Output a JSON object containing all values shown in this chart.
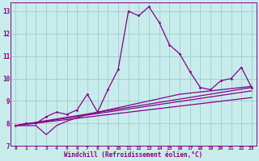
{
  "xlabel": "Windchill (Refroidissement éolien,°C)",
  "bg_color": "#c8ecec",
  "grid_color": "#a0cccc",
  "line_color": "#880088",
  "xlim": [
    -0.5,
    23.5
  ],
  "ylim": [
    7,
    13.4
  ],
  "yticks": [
    7,
    8,
    9,
    10,
    11,
    12,
    13
  ],
  "xticks": [
    0,
    1,
    2,
    3,
    4,
    5,
    6,
    7,
    8,
    9,
    10,
    11,
    12,
    13,
    14,
    15,
    16,
    17,
    18,
    19,
    20,
    21,
    22,
    23
  ],
  "main_x": [
    0,
    1,
    2,
    3,
    4,
    5,
    6,
    7,
    8,
    9,
    10,
    11,
    12,
    13,
    14,
    15,
    16,
    17,
    18,
    19,
    20,
    21,
    22,
    23
  ],
  "main_y": [
    7.9,
    8.0,
    8.0,
    8.3,
    8.5,
    8.4,
    8.6,
    9.3,
    8.5,
    9.5,
    10.4,
    13.0,
    12.8,
    13.2,
    12.5,
    11.5,
    11.1,
    10.3,
    9.6,
    9.5,
    9.9,
    10.0,
    10.5,
    9.6
  ],
  "line1_x": [
    0,
    23
  ],
  "line1_y": [
    7.9,
    9.6
  ],
  "line2_x": [
    0,
    23
  ],
  "line2_y": [
    7.9,
    9.15
  ],
  "line3_x": [
    0,
    23
  ],
  "line3_y": [
    7.9,
    9.45
  ],
  "dip_x": [
    0,
    1,
    2,
    3,
    4,
    5,
    6,
    7,
    8,
    9,
    10,
    11,
    12,
    13,
    14,
    15,
    16,
    17,
    18,
    19,
    20,
    21,
    22,
    23
  ],
  "dip_y": [
    7.9,
    7.9,
    7.9,
    7.5,
    7.9,
    8.1,
    8.25,
    8.4,
    8.5,
    8.6,
    8.7,
    8.8,
    8.9,
    9.0,
    9.1,
    9.2,
    9.3,
    9.35,
    9.4,
    9.45,
    9.5,
    9.55,
    9.6,
    9.65
  ]
}
